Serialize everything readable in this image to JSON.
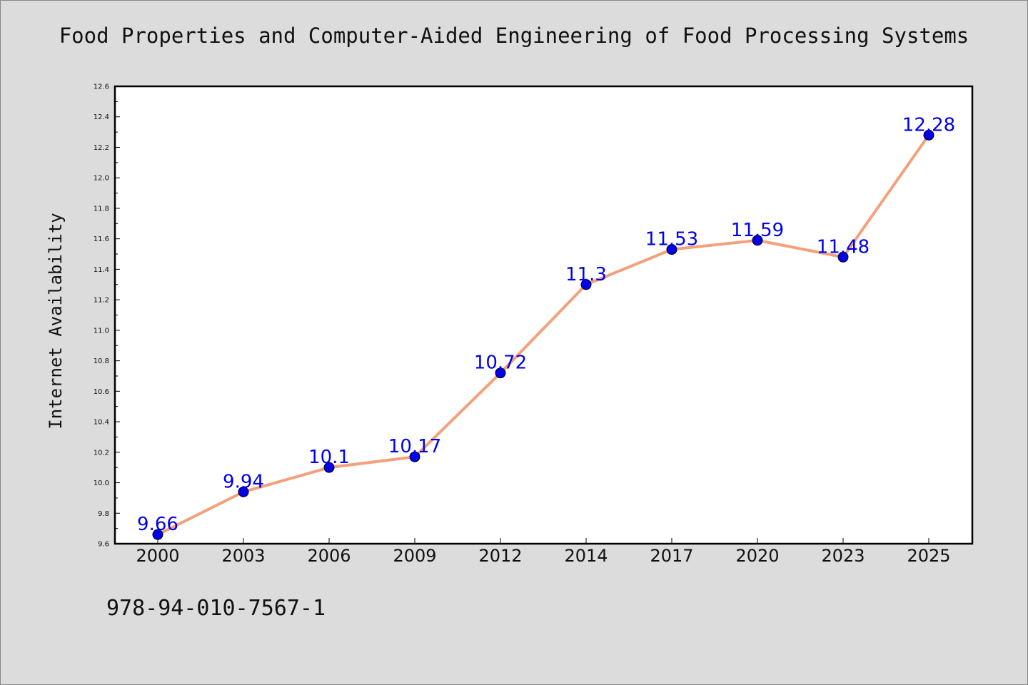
{
  "header": {
    "title": "Food Properties and Computer-Aided Engineering of Food Processing Systems"
  },
  "footer": {
    "isbn": "978-94-010-7567-1"
  },
  "chart_data": {
    "type": "line",
    "title": "Food Properties and Computer-Aided Engineering of Food Processing Systems",
    "xlabel": "",
    "ylabel": "Internet Availability",
    "categories": [
      "2000",
      "2003",
      "2006",
      "2009",
      "2012",
      "2014",
      "2017",
      "2020",
      "2023",
      "2025"
    ],
    "series": [
      {
        "values": [
          9.66,
          9.94,
          10.1,
          10.17,
          10.72,
          11.3,
          11.53,
          11.59,
          11.48,
          12.28
        ],
        "labels": [
          "9.66",
          "9.94",
          "10.1",
          "10.17",
          "10.72",
          "11.3",
          "11.53",
          "11.59",
          "11.48",
          "12.28"
        ],
        "line_color": "#f4a07a",
        "marker_color": "#0000ee"
      }
    ],
    "ylim": [
      9.6,
      12.6
    ],
    "yticks": [
      "9.6",
      "9.8",
      "10.0",
      "10.2",
      "10.4",
      "10.6",
      "10.8",
      "11.0",
      "11.2",
      "11.4",
      "11.6",
      "11.8",
      "12.0",
      "12.2",
      "12.4",
      "12.6"
    ],
    "grid": false,
    "legend": "none",
    "plot_background": "#ffffff",
    "page_background": "#dcdcdc"
  }
}
